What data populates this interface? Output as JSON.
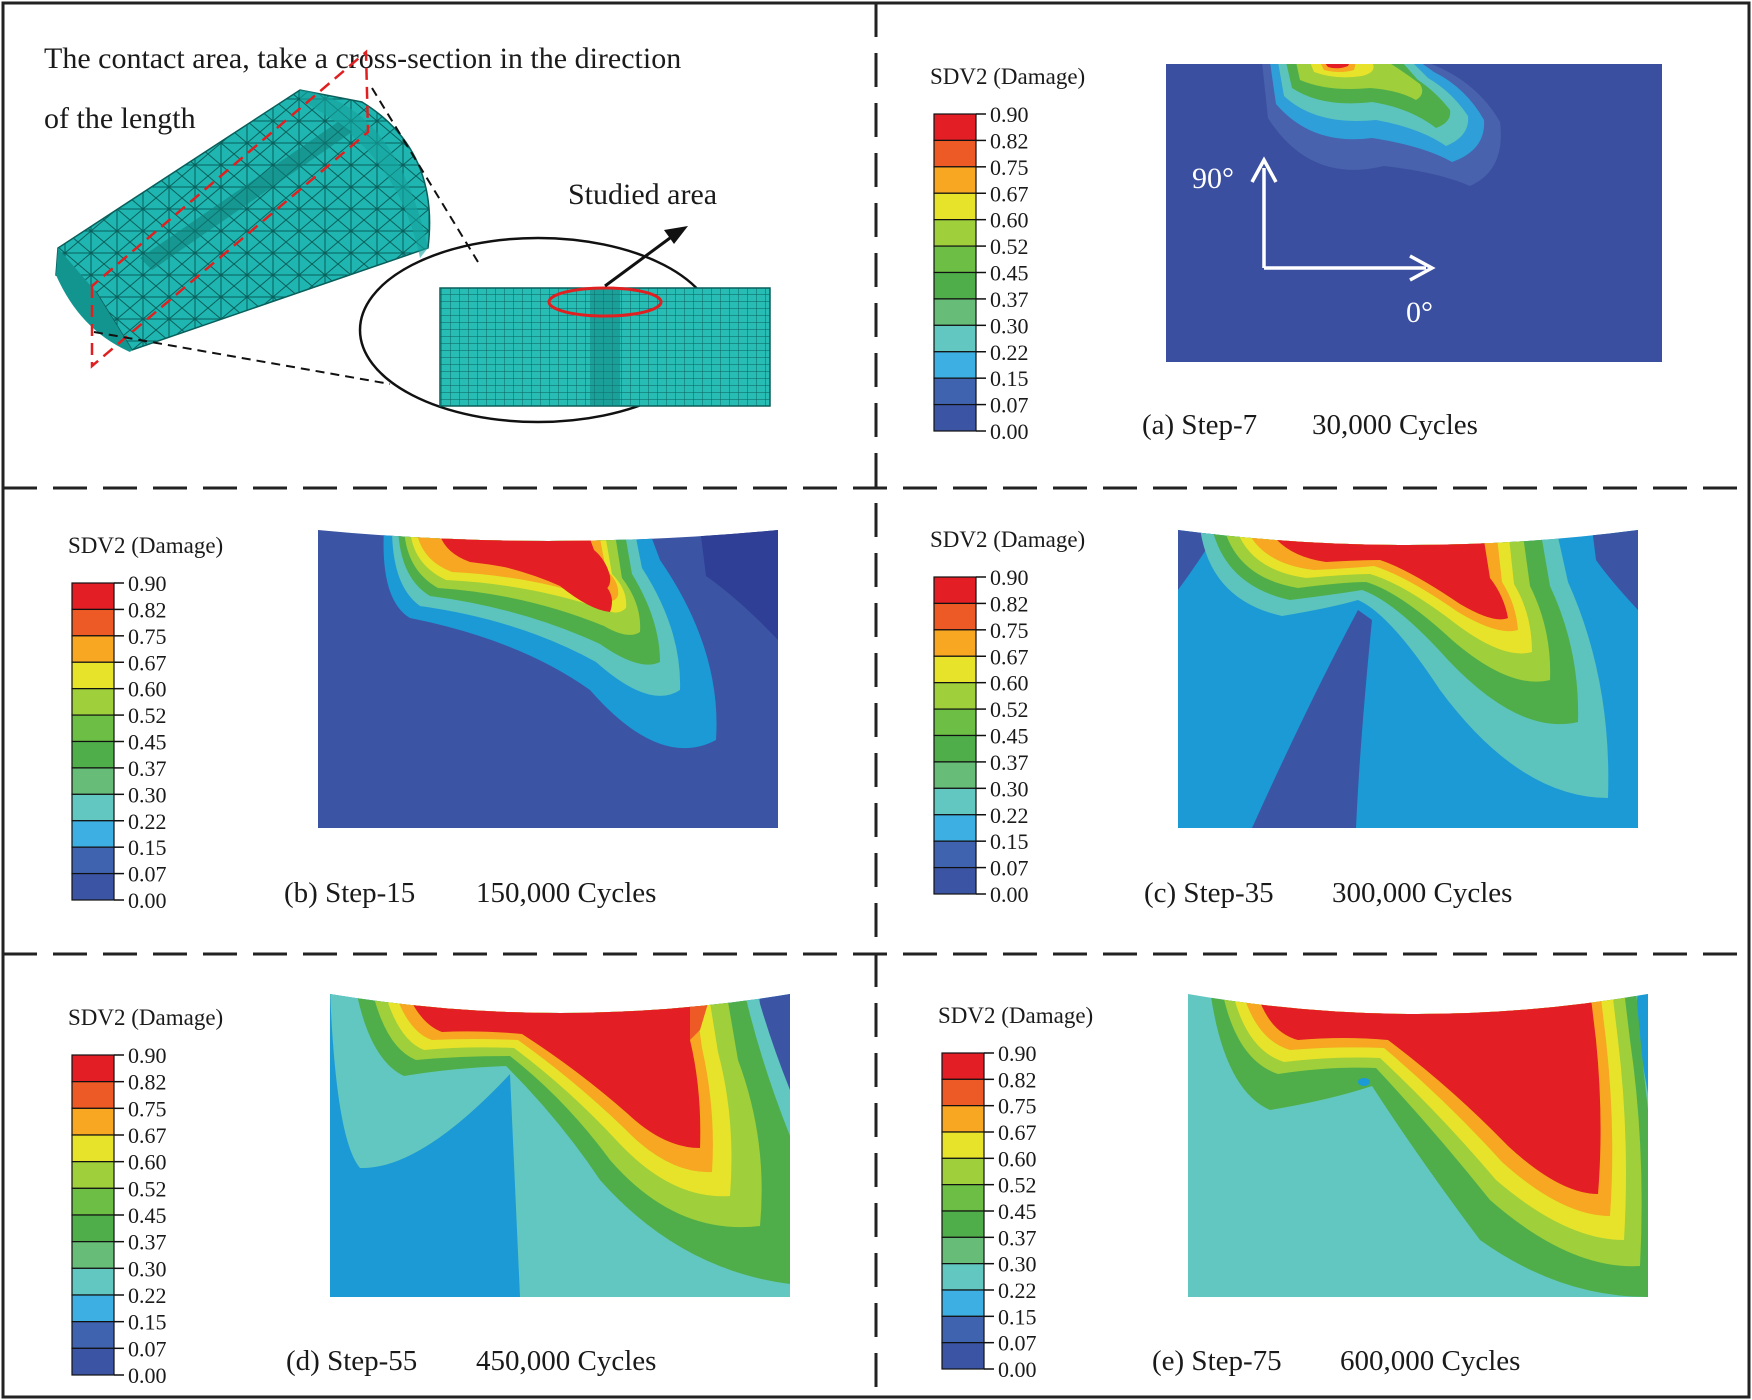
{
  "figure": {
    "intro_line1": "The contact area, take a cross-section in the direction",
    "intro_line2": "of the length",
    "studied_area_label": "Studied area",
    "axis_90": "90°",
    "axis_0": "0°"
  },
  "legend": {
    "title": "SDV2 (Damage)",
    "ticks": [
      "0.90",
      "0.82",
      "0.75",
      "0.67",
      "0.60",
      "0.52",
      "0.45",
      "0.37",
      "0.30",
      "0.22",
      "0.15",
      "0.07",
      "0.00"
    ],
    "colors": [
      "#e31e24",
      "#ee5a25",
      "#f7a722",
      "#e6e32a",
      "#9fcf3a",
      "#6cbe45",
      "#4fae4a",
      "#67bd78",
      "#62c7c0",
      "#3eafe3",
      "#3f63ae",
      "#3b55a4"
    ]
  },
  "panels": [
    {
      "id": "a",
      "label": "(a) Step-7",
      "cycles": "30,000 Cycles"
    },
    {
      "id": "b",
      "label": "(b) Step-15",
      "cycles": "150,000 Cycles"
    },
    {
      "id": "c",
      "label": "(c) Step-35",
      "cycles": "300,000 Cycles"
    },
    {
      "id": "d",
      "label": "(d) Step-55",
      "cycles": "450,000 Cycles"
    },
    {
      "id": "e",
      "label": "(e) Step-75",
      "cycles": "600,000 Cycles"
    }
  ]
}
